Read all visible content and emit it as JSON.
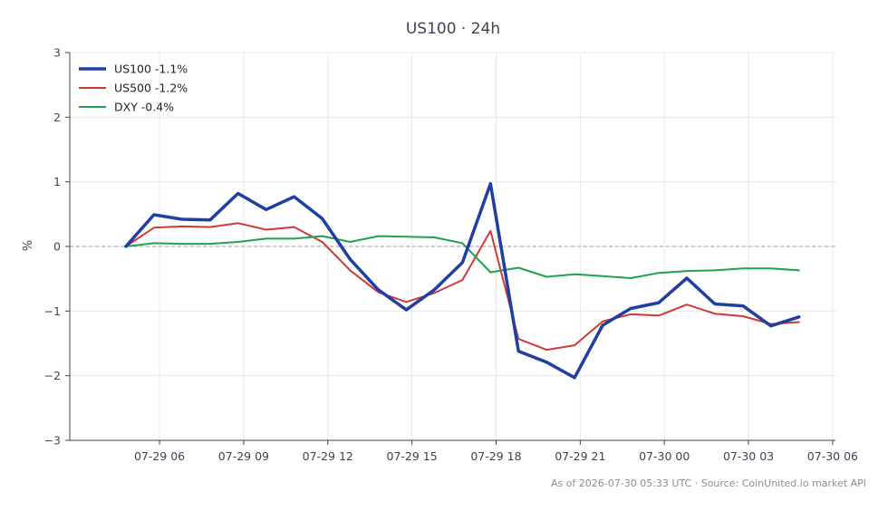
{
  "chart_data": {
    "type": "line",
    "title": "US100 · 24h",
    "ylabel": "%",
    "xlabel": "",
    "x_ticks": [
      "07-29 06",
      "07-29 09",
      "07-29 12",
      "07-29 15",
      "07-29 18",
      "07-29 21",
      "07-30 00",
      "07-30 03",
      "07-30 06"
    ],
    "x_hours": [
      4.8,
      5.8,
      6.8,
      7.8,
      8.8,
      9.8,
      10.8,
      11.8,
      12.8,
      13.8,
      14.8,
      15.8,
      16.8,
      17.8,
      18.8,
      19.8,
      20.8,
      21.8,
      22.8,
      23.8,
      24.8,
      25.8,
      26.8,
      27.8,
      28.8
    ],
    "xlim": [
      2.8,
      30.1
    ],
    "ylim": [
      -3,
      3
    ],
    "y_ticks": [
      "−3",
      "−2",
      "−1",
      "0",
      "1",
      "2",
      "3"
    ],
    "y_tick_values": [
      -3,
      -2,
      -1,
      0,
      1,
      2,
      3
    ],
    "grid": true,
    "legend_position": "top-left",
    "zero_line": true,
    "series": [
      {
        "name": "US100 -1.1%",
        "color": "#1f3fa3",
        "width": 3.5,
        "values": [
          0.0,
          0.49,
          0.42,
          0.41,
          0.82,
          0.57,
          0.77,
          0.43,
          -0.2,
          -0.67,
          -0.98,
          -0.67,
          -0.25,
          0.97,
          -1.62,
          -1.79,
          -2.03,
          -1.22,
          -0.96,
          -0.87,
          -0.49,
          -0.89,
          -0.92,
          -1.23,
          -1.09
        ]
      },
      {
        "name": "US500 -1.2%",
        "color": "#d03a35",
        "width": 2,
        "values": [
          0.0,
          0.29,
          0.31,
          0.3,
          0.36,
          0.26,
          0.3,
          0.07,
          -0.37,
          -0.71,
          -0.86,
          -0.72,
          -0.52,
          0.24,
          -1.43,
          -1.6,
          -1.53,
          -1.16,
          -1.05,
          -1.07,
          -0.9,
          -1.04,
          -1.08,
          -1.2,
          -1.17
        ]
      },
      {
        "name": "DXY -0.4%",
        "color": "#1fa24a",
        "width": 2,
        "values": [
          0.0,
          0.05,
          0.04,
          0.04,
          0.07,
          0.12,
          0.12,
          0.16,
          0.07,
          0.16,
          0.15,
          0.14,
          0.05,
          -0.4,
          -0.33,
          -0.47,
          -0.43,
          -0.46,
          -0.49,
          -0.41,
          -0.38,
          -0.37,
          -0.34,
          -0.34,
          -0.37
        ]
      }
    ],
    "footer": "As of 2026-07-30 05:33 UTC · Source: CoinUnited.io market API"
  },
  "colors": {
    "axis": "#3a4556",
    "grid": "#e8e8e8",
    "zero_line": "#8f9bb3"
  }
}
